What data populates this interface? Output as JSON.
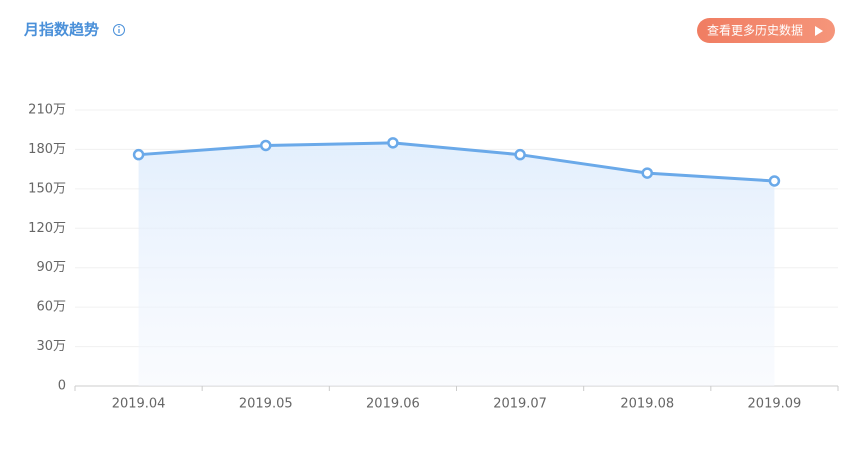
{
  "header": {
    "button": "查看更多历史数据"
  },
  "chart_data": {
    "type": "line",
    "title": "月指数趋势",
    "categories": [
      "2019.04",
      "2019.05",
      "2019.06",
      "2019.07",
      "2019.08",
      "2019.09"
    ],
    "series": [
      {
        "name": "月指数",
        "color": "#6aa9e9",
        "values": [
          176,
          183,
          185,
          176,
          162,
          156
        ]
      }
    ],
    "ylim": [
      0,
      210
    ],
    "yticks": [
      0,
      {
        "value": 30,
        "label": "30万"
      },
      {
        "value": 60,
        "label": "60万"
      },
      {
        "value": 90,
        "label": "90万"
      },
      {
        "value": 120,
        "label": "120万"
      },
      {
        "value": 150,
        "label": "150万"
      },
      {
        "value": 180,
        "label": "180万"
      },
      {
        "value": 210,
        "label": "210万"
      }
    ],
    "grid": true,
    "area": true
  }
}
